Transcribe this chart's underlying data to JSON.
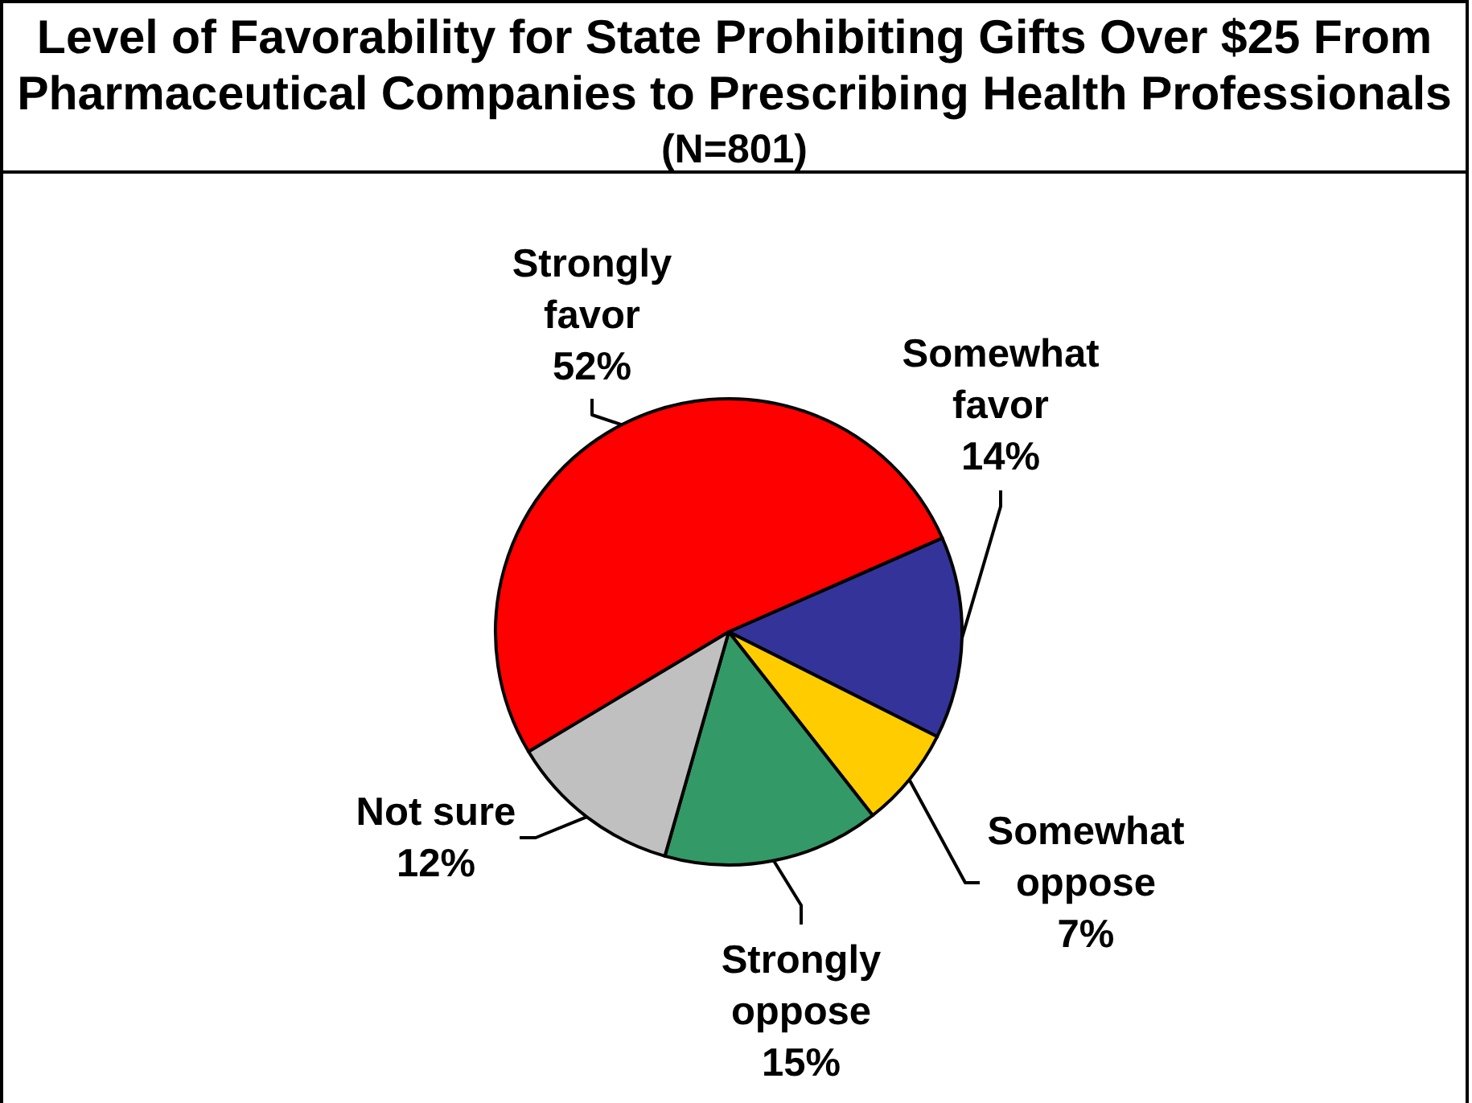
{
  "chart_data": {
    "type": "pie",
    "title": "Level of Favorability for State Prohibiting Gifts Over $25 From Pharmaceutical Companies to Prescribing Health Professionals",
    "subtitle": "(N=801)",
    "categories": [
      "Strongly favor",
      "Somewhat favor",
      "Somewhat oppose",
      "Strongly oppose",
      "Not sure"
    ],
    "values": [
      52,
      14,
      7,
      15,
      12
    ],
    "colors": [
      "#ff0000",
      "#333399",
      "#ffcc00",
      "#339966",
      "#c0c0c0"
    ],
    "value_labels": [
      "52%",
      "14%",
      "7%",
      "15%",
      "12%"
    ]
  }
}
